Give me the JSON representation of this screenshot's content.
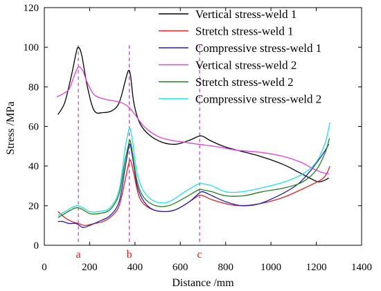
{
  "chart_data": {
    "type": "line",
    "xlabel": "Distance /mm",
    "ylabel": "Stress /MPa",
    "xlim": [
      0,
      1400
    ],
    "ylim": [
      0,
      120
    ],
    "xticks": [
      0,
      200,
      400,
      600,
      800,
      1000,
      1200,
      1400
    ],
    "yticks": [
      0,
      20,
      40,
      60,
      80,
      100,
      120
    ],
    "grid": false,
    "legend_position": "top-right",
    "series": [
      {
        "name": "Vertical stress-weld 1",
        "color": "#000000",
        "points": [
          [
            60,
            66
          ],
          [
            90,
            72
          ],
          [
            120,
            86
          ],
          [
            140,
            97
          ],
          [
            150,
            100
          ],
          [
            165,
            96
          ],
          [
            190,
            80
          ],
          [
            220,
            68
          ],
          [
            260,
            67
          ],
          [
            300,
            68
          ],
          [
            330,
            72
          ],
          [
            355,
            82
          ],
          [
            370,
            88
          ],
          [
            380,
            86
          ],
          [
            395,
            72
          ],
          [
            420,
            62
          ],
          [
            460,
            56
          ],
          [
            520,
            52
          ],
          [
            580,
            51
          ],
          [
            640,
            53
          ],
          [
            680,
            55
          ],
          [
            700,
            55
          ],
          [
            730,
            53
          ],
          [
            790,
            50
          ],
          [
            850,
            48
          ],
          [
            950,
            45
          ],
          [
            1050,
            41
          ],
          [
            1120,
            37
          ],
          [
            1170,
            34
          ],
          [
            1210,
            32
          ],
          [
            1240,
            33
          ],
          [
            1255,
            34
          ]
        ]
      },
      {
        "name": "Stretch stress-weld 1",
        "color": "#e52020",
        "points": [
          [
            60,
            17
          ],
          [
            90,
            14
          ],
          [
            120,
            12
          ],
          [
            150,
            11
          ],
          [
            180,
            10
          ],
          [
            220,
            11
          ],
          [
            260,
            12
          ],
          [
            300,
            15
          ],
          [
            330,
            20
          ],
          [
            355,
            32
          ],
          [
            370,
            40
          ],
          [
            380,
            43
          ],
          [
            395,
            36
          ],
          [
            420,
            24
          ],
          [
            460,
            19
          ],
          [
            520,
            17
          ],
          [
            580,
            18
          ],
          [
            640,
            22
          ],
          [
            680,
            25
          ],
          [
            700,
            25
          ],
          [
            740,
            23
          ],
          [
            800,
            21
          ],
          [
            860,
            20
          ],
          [
            950,
            21
          ],
          [
            1050,
            24
          ],
          [
            1150,
            29
          ],
          [
            1220,
            33
          ],
          [
            1245,
            36
          ],
          [
            1260,
            40
          ]
        ]
      },
      {
        "name": "Compressive stress-weld 1",
        "color": "#1f1fb4",
        "points": [
          [
            60,
            12
          ],
          [
            80,
            12
          ],
          [
            110,
            11
          ],
          [
            140,
            11
          ],
          [
            170,
            9
          ],
          [
            200,
            10
          ],
          [
            240,
            12
          ],
          [
            290,
            15
          ],
          [
            330,
            22
          ],
          [
            355,
            38
          ],
          [
            370,
            48
          ],
          [
            378,
            51
          ],
          [
            390,
            44
          ],
          [
            410,
            30
          ],
          [
            440,
            22
          ],
          [
            480,
            18
          ],
          [
            530,
            17
          ],
          [
            580,
            18
          ],
          [
            640,
            22
          ],
          [
            680,
            26
          ],
          [
            700,
            27
          ],
          [
            740,
            25
          ],
          [
            800,
            22
          ],
          [
            870,
            20
          ],
          [
            950,
            21
          ],
          [
            1050,
            26
          ],
          [
            1120,
            31
          ],
          [
            1170,
            37
          ],
          [
            1210,
            43
          ],
          [
            1240,
            48
          ],
          [
            1255,
            51
          ]
        ]
      },
      {
        "name": "Vertical stress-weld 2",
        "color": "#e040e0",
        "points": [
          [
            55,
            75
          ],
          [
            75,
            76
          ],
          [
            90,
            77
          ],
          [
            110,
            79
          ],
          [
            130,
            85
          ],
          [
            150,
            90
          ],
          [
            170,
            88
          ],
          [
            190,
            82
          ],
          [
            220,
            76
          ],
          [
            260,
            74
          ],
          [
            300,
            73
          ],
          [
            340,
            72
          ],
          [
            370,
            70
          ],
          [
            400,
            66
          ],
          [
            440,
            60
          ],
          [
            500,
            55
          ],
          [
            560,
            53
          ],
          [
            620,
            52
          ],
          [
            680,
            51
          ],
          [
            750,
            50
          ],
          [
            850,
            48
          ],
          [
            950,
            47
          ],
          [
            1050,
            45
          ],
          [
            1130,
            42
          ],
          [
            1180,
            39
          ],
          [
            1220,
            37
          ],
          [
            1255,
            36
          ]
        ]
      },
      {
        "name": "Stretch stress-weld 2",
        "color": "#208020",
        "points": [
          [
            60,
            14
          ],
          [
            90,
            16
          ],
          [
            120,
            18
          ],
          [
            145,
            19
          ],
          [
            170,
            18
          ],
          [
            200,
            16
          ],
          [
            240,
            16
          ],
          [
            290,
            18
          ],
          [
            330,
            26
          ],
          [
            355,
            42
          ],
          [
            370,
            50
          ],
          [
            378,
            53
          ],
          [
            390,
            46
          ],
          [
            410,
            32
          ],
          [
            440,
            24
          ],
          [
            490,
            20
          ],
          [
            550,
            20
          ],
          [
            620,
            24
          ],
          [
            680,
            28
          ],
          [
            700,
            28
          ],
          [
            740,
            27
          ],
          [
            800,
            25
          ],
          [
            880,
            25
          ],
          [
            960,
            27
          ],
          [
            1060,
            29
          ],
          [
            1140,
            32
          ],
          [
            1200,
            38
          ],
          [
            1240,
            47
          ],
          [
            1258,
            54
          ]
        ]
      },
      {
        "name": "Compressive stress-weld 2",
        "color": "#20e0e0",
        "points": [
          [
            60,
            15
          ],
          [
            90,
            17
          ],
          [
            120,
            19
          ],
          [
            145,
            20
          ],
          [
            170,
            19
          ],
          [
            200,
            17
          ],
          [
            240,
            17
          ],
          [
            290,
            19
          ],
          [
            330,
            28
          ],
          [
            355,
            48
          ],
          [
            370,
            57
          ],
          [
            378,
            59
          ],
          [
            390,
            52
          ],
          [
            410,
            36
          ],
          [
            440,
            27
          ],
          [
            490,
            22
          ],
          [
            550,
            22
          ],
          [
            620,
            27
          ],
          [
            680,
            31
          ],
          [
            700,
            31
          ],
          [
            740,
            30
          ],
          [
            800,
            27
          ],
          [
            870,
            27
          ],
          [
            960,
            29
          ],
          [
            1060,
            32
          ],
          [
            1140,
            36
          ],
          [
            1200,
            42
          ],
          [
            1240,
            52
          ],
          [
            1260,
            62
          ]
        ]
      }
    ],
    "annotations": [
      {
        "label": "a",
        "x": 150,
        "color": "#a020a0"
      },
      {
        "label": "b",
        "x": 375,
        "color": "#a020a0"
      },
      {
        "label": "c",
        "x": 685,
        "color": "#a020a0"
      }
    ]
  }
}
